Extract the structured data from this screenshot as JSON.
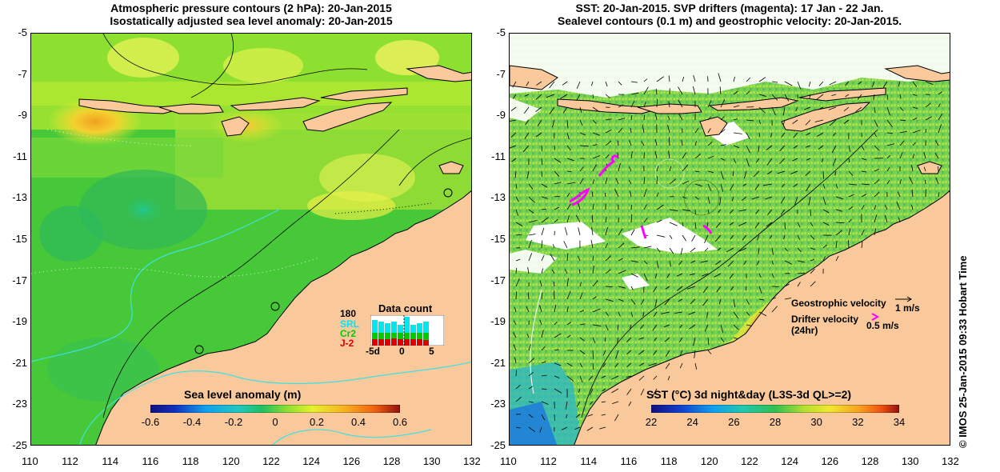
{
  "left_map": {
    "title_line1": "Atmospheric pressure contours (2 hPa): 20-Jan-2015",
    "title_line2": "Isostatically adjusted sea level anomaly: 20-Jan-2015",
    "colorbar_title": "Sea level anomaly (m)",
    "colorbar_ticks": [
      "-0.6",
      "-0.4",
      "-0.2",
      "0",
      "0.2",
      "0.4",
      "0.6"
    ],
    "colorbar_range": [
      -0.6,
      0.6
    ],
    "data_count": {
      "title": "Data count",
      "max_label": "180",
      "series": [
        {
          "name": "SRL",
          "color": "#00e5ee"
        },
        {
          "name": "Cr2",
          "color": "#00cc00"
        },
        {
          "name": "J-2",
          "color": "#dd0000"
        }
      ],
      "x_ticks": [
        "-5d",
        "0",
        "5"
      ]
    }
  },
  "right_map": {
    "title_line1": "SST: 20-Jan-2015. SVP drifters (magenta): 17 Jan - 22 Jan.",
    "title_line2": "Sealevel contours (0.1 m) and geostrophic velocity: 20-Jan-2015.",
    "colorbar_title": "SST (°C) 3d night&day (L3S-3d QL>=2)",
    "colorbar_ticks": [
      "22",
      "24",
      "26",
      "28",
      "30",
      "32",
      "34"
    ],
    "colorbar_range": [
      22,
      34
    ],
    "legend": {
      "geostrophic_label": "Geostrophic velocity",
      "geostrophic_value": "1 m/s",
      "drifter_label": "Drifter velocity",
      "drifter_sub": "(24hr)",
      "drifter_value": "0.5 m/s"
    }
  },
  "axes": {
    "x_ticks": [
      "110",
      "112",
      "114",
      "116",
      "118",
      "120",
      "122",
      "124",
      "126",
      "128",
      "130",
      "132"
    ],
    "y_ticks": [
      "-5",
      "-7",
      "-9",
      "-11",
      "-13",
      "-15",
      "-17",
      "-19",
      "-21",
      "-23",
      "-25"
    ],
    "lon_range": [
      110,
      132
    ],
    "lat_range": [
      -25,
      -5
    ]
  },
  "stamp": "© IMOS 25-Jan-2015 09:33 Hobart Time",
  "colors": {
    "land": "#f9c99c",
    "coast": "#000000",
    "no_data": "#ffffff",
    "drifter": "#ff00ff",
    "contour_cyan": "#40e0e0"
  }
}
